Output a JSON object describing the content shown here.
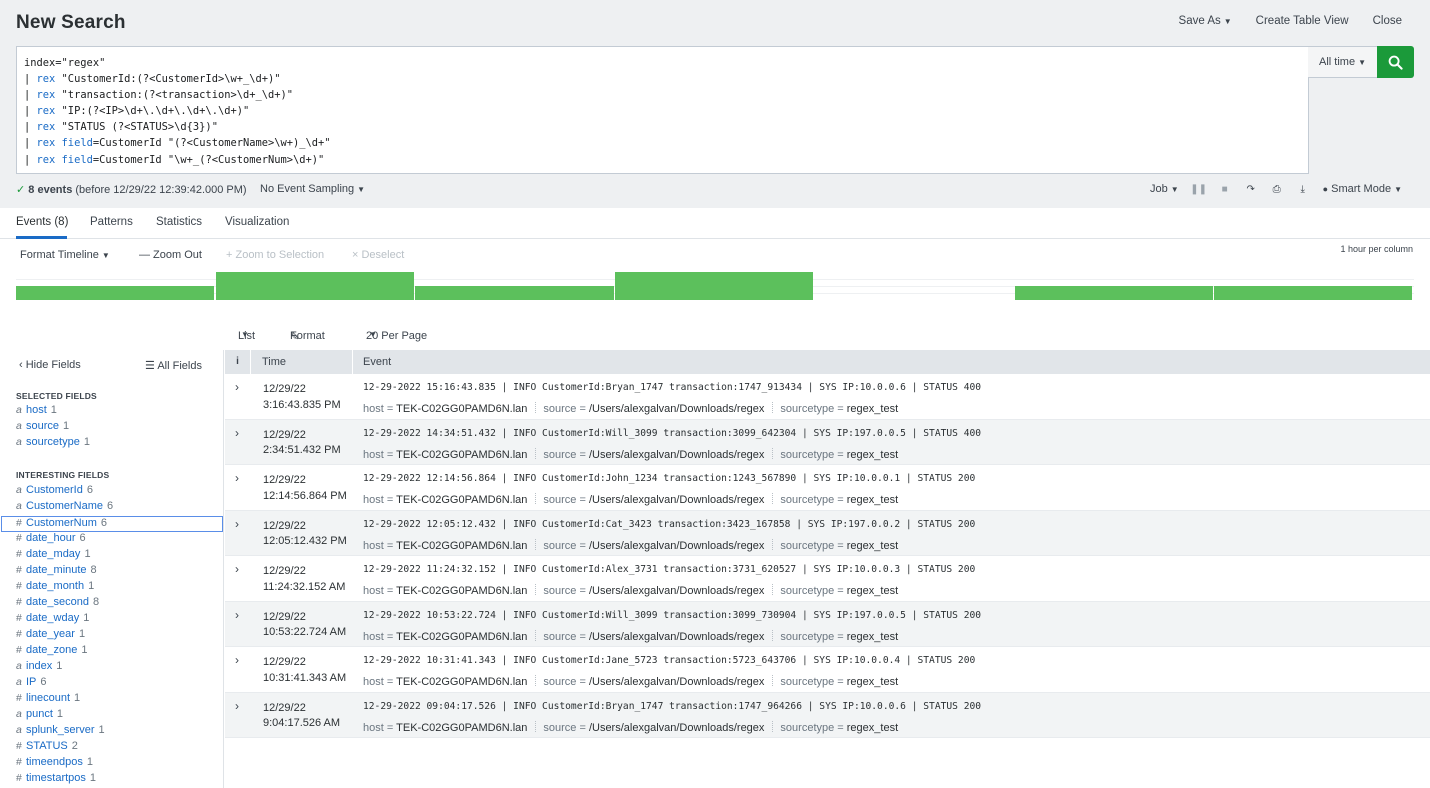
{
  "header": {
    "title": "New Search",
    "save_as": "Save As",
    "create_table_view": "Create Table View",
    "close": "Close"
  },
  "search": {
    "lines": [
      {
        "pipe": "",
        "kw": "",
        "field_kw": "",
        "rest": "index=\"regex\""
      },
      {
        "pipe": "| ",
        "kw": "rex",
        "field_kw": "",
        "rest": " \"CustomerId:(?<CustomerId>\\w+_\\d+)\""
      },
      {
        "pipe": "| ",
        "kw": "rex",
        "field_kw": "",
        "rest": " \"transaction:(?<transaction>\\d+_\\d+)\""
      },
      {
        "pipe": "| ",
        "kw": "rex",
        "field_kw": "",
        "rest": " \"IP:(?<IP>\\d+\\.\\d+\\.\\d+\\.\\d+)\""
      },
      {
        "pipe": "| ",
        "kw": "rex",
        "field_kw": "",
        "rest": " \"STATUS (?<STATUS>\\d{3})\""
      },
      {
        "pipe": "| ",
        "kw": "rex",
        "field_kw": " field",
        "rest": "=CustomerId \"(?<CustomerName>\\w+)_\\d+\""
      },
      {
        "pipe": "| ",
        "kw": "rex",
        "field_kw": " field",
        "rest": "=CustomerId \"\\w+_(?<CustomerNum>\\d+)\""
      }
    ],
    "time_range": "All time"
  },
  "status": {
    "check": "✓",
    "count": "8 events",
    "detail": " (before 12/29/22 12:39:42.000 PM)",
    "sampling": "No Event Sampling",
    "job": "Job",
    "mode": "Smart Mode"
  },
  "tabs": [
    "Events (8)",
    "Patterns",
    "Statistics",
    "Visualization"
  ],
  "timeline": {
    "format": "Format Timeline",
    "zoom_out": "— Zoom Out",
    "zoom_sel": "+ Zoom to Selection",
    "deselect": "× Deselect",
    "per_column": "1 hour per column",
    "counts": [
      1,
      2,
      1,
      2,
      0,
      1,
      1
    ],
    "bar_color": "#5cc05c"
  },
  "events_bar": {
    "list": "List",
    "format": "Format",
    "per_page": "20 Per Page"
  },
  "sidebar": {
    "hide": "Hide Fields",
    "all": "All Fields",
    "selected_head": "SELECTED FIELDS",
    "interesting_head": "INTERESTING FIELDS",
    "selected": [
      {
        "type": "a",
        "name": "host",
        "count": "1"
      },
      {
        "type": "a",
        "name": "source",
        "count": "1"
      },
      {
        "type": "a",
        "name": "sourcetype",
        "count": "1"
      }
    ],
    "interesting": [
      {
        "type": "a",
        "name": "CustomerId",
        "count": "6"
      },
      {
        "type": "a",
        "name": "CustomerName",
        "count": "6"
      },
      {
        "type": "#",
        "name": "CustomerNum",
        "count": "6"
      },
      {
        "type": "#",
        "name": "date_hour",
        "count": "6"
      },
      {
        "type": "#",
        "name": "date_mday",
        "count": "1"
      },
      {
        "type": "#",
        "name": "date_minute",
        "count": "8"
      },
      {
        "type": "#",
        "name": "date_month",
        "count": "1"
      },
      {
        "type": "#",
        "name": "date_second",
        "count": "8"
      },
      {
        "type": "#",
        "name": "date_wday",
        "count": "1"
      },
      {
        "type": "#",
        "name": "date_year",
        "count": "1"
      },
      {
        "type": "#",
        "name": "date_zone",
        "count": "1"
      },
      {
        "type": "a",
        "name": "index",
        "count": "1"
      },
      {
        "type": "a",
        "name": "IP",
        "count": "6"
      },
      {
        "type": "#",
        "name": "linecount",
        "count": "1"
      },
      {
        "type": "a",
        "name": "punct",
        "count": "1"
      },
      {
        "type": "a",
        "name": "splunk_server",
        "count": "1"
      },
      {
        "type": "#",
        "name": "STATUS",
        "count": "2"
      },
      {
        "type": "#",
        "name": "timeendpos",
        "count": "1"
      },
      {
        "type": "#",
        "name": "timestartpos",
        "count": "1"
      }
    ],
    "selected_field": "CustomerNum"
  },
  "table": {
    "col_i": "i",
    "col_time": "Time",
    "col_event": "Event",
    "host_key": "host = ",
    "source_key": "source = ",
    "sourcetype_key": "sourcetype = ",
    "rows": [
      {
        "date": "12/29/22",
        "time": "3:16:43.835 PM",
        "raw": "12-29-2022 15:16:43.835 | INFO CustomerId:Bryan_1747 transaction:1747_913434 | SYS IP:10.0.0.6 | STATUS 400",
        "host": "TEK-C02GG0PAMD6N.lan",
        "source": "/Users/alexgalvan/Downloads/regex",
        "sourcetype": "regex_test"
      },
      {
        "date": "12/29/22",
        "time": "2:34:51.432 PM",
        "raw": "12-29-2022 14:34:51.432 | INFO CustomerId:Will_3099 transaction:3099_642304 | SYS IP:197.0.0.5 | STATUS 400",
        "host": "TEK-C02GG0PAMD6N.lan",
        "source": "/Users/alexgalvan/Downloads/regex",
        "sourcetype": "regex_test"
      },
      {
        "date": "12/29/22",
        "time": "12:14:56.864 PM",
        "raw": "12-29-2022 12:14:56.864 | INFO CustomerId:John_1234 transaction:1243_567890 | SYS IP:10.0.0.1 | STATUS 200",
        "host": "TEK-C02GG0PAMD6N.lan",
        "source": "/Users/alexgalvan/Downloads/regex",
        "sourcetype": "regex_test"
      },
      {
        "date": "12/29/22",
        "time": "12:05:12.432 PM",
        "raw": "12-29-2022 12:05:12.432 | INFO CustomerId:Cat_3423 transaction:3423_167858 | SYS IP:197.0.0.2 | STATUS 200",
        "host": "TEK-C02GG0PAMD6N.lan",
        "source": "/Users/alexgalvan/Downloads/regex",
        "sourcetype": "regex_test"
      },
      {
        "date": "12/29/22",
        "time": "11:24:32.152 AM",
        "raw": "12-29-2022 11:24:32.152 | INFO CustomerId:Alex_3731 transaction:3731_620527 | SYS IP:10.0.0.3 | STATUS 200",
        "host": "TEK-C02GG0PAMD6N.lan",
        "source": "/Users/alexgalvan/Downloads/regex",
        "sourcetype": "regex_test"
      },
      {
        "date": "12/29/22",
        "time": "10:53:22.724 AM",
        "raw": "12-29-2022 10:53:22.724 | INFO CustomerId:Will_3099 transaction:3099_730904 | SYS IP:197.0.0.5 | STATUS 200",
        "host": "TEK-C02GG0PAMD6N.lan",
        "source": "/Users/alexgalvan/Downloads/regex",
        "sourcetype": "regex_test"
      },
      {
        "date": "12/29/22",
        "time": "10:31:41.343 AM",
        "raw": "12-29-2022 10:31:41.343 | INFO CustomerId:Jane_5723 transaction:5723_643706 | SYS IP:10.0.0.4 | STATUS 200",
        "host": "TEK-C02GG0PAMD6N.lan",
        "source": "/Users/alexgalvan/Downloads/regex",
        "sourcetype": "regex_test"
      },
      {
        "date": "12/29/22",
        "time": "9:04:17.526 AM",
        "raw": "12-29-2022 09:04:17.526 | INFO CustomerId:Bryan_1747 transaction:1747_964266 | SYS IP:10.0.0.6 | STATUS 200",
        "host": "TEK-C02GG0PAMD6N.lan",
        "source": "/Users/alexgalvan/Downloads/regex",
        "sourcetype": "regex_test"
      }
    ]
  },
  "colors": {
    "accent": "#1a6bc6",
    "search_button": "#1b9a3a",
    "bars": "#5cc05c"
  }
}
